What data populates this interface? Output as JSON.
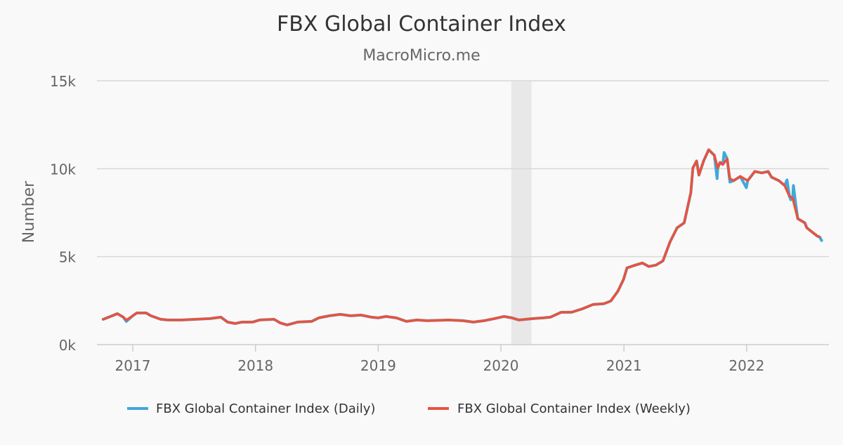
{
  "chart_data": {
    "type": "line",
    "title": "FBX Global Container Index",
    "subtitle": "MacroMicro.me",
    "xlabel": "",
    "ylabel": "Number",
    "ylim": [
      0,
      15000
    ],
    "xlim": [
      "2016-08-15",
      "2022-09-15"
    ],
    "y_ticks": [
      0,
      5000,
      10000,
      15000
    ],
    "y_tick_labels": [
      "0k",
      "5k",
      "10k",
      "15k"
    ],
    "x_ticks": [
      "2017-01-01",
      "2018-01-01",
      "2019-01-01",
      "2020-01-01",
      "2021-01-01",
      "2022-01-01"
    ],
    "x_tick_labels": [
      "2017",
      "2018",
      "2019",
      "2020",
      "2021",
      "2022"
    ],
    "grid": "horizontal",
    "legend": "bottom",
    "shaded_periods": [
      [
        "2020-02-01",
        "2020-04-01"
      ]
    ],
    "series": [
      {
        "name": "FBX Global Container Index (Daily)",
        "color": "#3fa9d9",
        "dates": [
          "2016-10-05",
          "2016-11-01",
          "2016-11-16",
          "2016-12-04",
          "2016-12-13",
          "2017-01-01",
          "2017-01-13",
          "2017-02-10",
          "2017-02-24",
          "2017-03-25",
          "2017-04-15",
          "2017-05-27",
          "2017-07-08",
          "2017-08-19",
          "2017-09-20",
          "2017-10-10",
          "2017-11-01",
          "2017-11-22",
          "2017-12-23",
          "2018-01-13",
          "2018-02-25",
          "2018-03-15",
          "2018-04-05",
          "2018-05-06",
          "2018-06-17",
          "2018-07-08",
          "2018-08-09",
          "2018-09-10",
          "2018-10-11",
          "2018-11-11",
          "2018-12-12",
          "2019-01-01",
          "2019-01-24",
          "2019-02-24",
          "2019-03-26",
          "2019-04-26",
          "2019-05-27",
          "2019-07-29",
          "2019-09-10",
          "2019-10-11",
          "2019-11-12",
          "2019-12-13",
          "2020-01-10",
          "2020-02-03",
          "2020-02-24",
          "2020-04-05",
          "2020-05-06",
          "2020-05-27",
          "2020-06-28",
          "2020-07-29",
          "2020-08-31",
          "2020-10-01",
          "2020-11-02",
          "2020-11-23",
          "2020-12-14",
          "2020-12-31",
          "2021-01-10",
          "2021-02-04",
          "2021-02-25",
          "2021-03-16",
          "2021-04-06",
          "2021-04-27",
          "2021-05-18",
          "2021-06-08",
          "2021-06-29",
          "2021-07-19",
          "2021-07-25",
          "2021-08-05",
          "2021-08-12",
          "2021-08-26",
          "2021-09-10",
          "2021-09-27",
          "2021-10-05",
          "2021-10-07",
          "2021-10-14",
          "2021-10-22",
          "2021-10-26",
          "2021-11-04",
          "2021-11-12",
          "2021-11-23",
          "2021-12-13",
          "2021-12-31",
          "2022-01-04",
          "2022-01-25",
          "2022-02-15",
          "2022-03-06",
          "2022-03-16",
          "2022-04-07",
          "2022-04-24",
          "2022-05-01",
          "2022-05-08",
          "2022-05-12",
          "2022-05-18",
          "2022-05-20",
          "2022-05-27",
          "2022-06-02",
          "2022-06-23",
          "2022-06-29",
          "2022-07-20",
          "2022-07-31",
          "2022-08-06",
          "2022-08-12"
        ],
        "values": [
          1440,
          1640,
          1760,
          1560,
          1320,
          1640,
          1800,
          1800,
          1640,
          1440,
          1400,
          1400,
          1440,
          1480,
          1560,
          1280,
          1200,
          1280,
          1280,
          1400,
          1440,
          1240,
          1120,
          1280,
          1320,
          1520,
          1640,
          1720,
          1640,
          1680,
          1560,
          1520,
          1600,
          1520,
          1320,
          1400,
          1360,
          1400,
          1360,
          1280,
          1360,
          1480,
          1600,
          1520,
          1400,
          1480,
          1520,
          1560,
          1840,
          1840,
          2040,
          2280,
          2320,
          2480,
          3040,
          3720,
          4360,
          4520,
          4640,
          4440,
          4520,
          4760,
          5840,
          6640,
          6920,
          8640,
          10040,
          10440,
          9640,
          10440,
          11080,
          10760,
          9440,
          10040,
          10360,
          10240,
          10920,
          10560,
          9240,
          9320,
          9560,
          8920,
          9320,
          9840,
          9760,
          9840,
          9520,
          9320,
          9040,
          9360,
          8440,
          8240,
          8320,
          9040,
          7960,
          7160,
          6920,
          6640,
          6320,
          6160,
          6120,
          5920
        ]
      },
      {
        "name": "FBX Global Container Index (Weekly)",
        "color": "#e8533f",
        "dates": [
          "2016-10-05",
          "2016-11-01",
          "2016-11-16",
          "2016-12-04",
          "2016-12-13",
          "2017-01-01",
          "2017-01-13",
          "2017-02-10",
          "2017-02-24",
          "2017-03-25",
          "2017-04-15",
          "2017-05-27",
          "2017-07-08",
          "2017-08-19",
          "2017-09-20",
          "2017-10-10",
          "2017-11-01",
          "2017-11-22",
          "2017-12-23",
          "2018-01-13",
          "2018-02-25",
          "2018-03-15",
          "2018-04-05",
          "2018-05-06",
          "2018-06-17",
          "2018-07-08",
          "2018-08-09",
          "2018-09-10",
          "2018-10-11",
          "2018-11-11",
          "2018-12-12",
          "2019-01-01",
          "2019-01-24",
          "2019-02-24",
          "2019-03-26",
          "2019-04-26",
          "2019-05-27",
          "2019-07-29",
          "2019-09-10",
          "2019-10-11",
          "2019-11-12",
          "2019-12-13",
          "2020-01-10",
          "2020-02-03",
          "2020-02-24",
          "2020-04-05",
          "2020-05-06",
          "2020-05-27",
          "2020-06-28",
          "2020-07-29",
          "2020-08-31",
          "2020-10-01",
          "2020-11-02",
          "2020-11-23",
          "2020-12-14",
          "2020-12-31",
          "2021-01-10",
          "2021-02-04",
          "2021-02-25",
          "2021-03-16",
          "2021-04-06",
          "2021-04-27",
          "2021-05-18",
          "2021-06-08",
          "2021-06-29",
          "2021-07-19",
          "2021-07-25",
          "2021-08-05",
          "2021-08-12",
          "2021-08-26",
          "2021-09-10",
          "2021-09-27",
          "2021-10-07",
          "2021-10-14",
          "2021-10-22",
          "2021-11-04",
          "2021-11-12",
          "2021-11-23",
          "2021-12-13",
          "2022-01-04",
          "2022-01-25",
          "2022-02-15",
          "2022-03-06",
          "2022-03-16",
          "2022-04-07",
          "2022-04-24",
          "2022-05-08",
          "2022-05-18",
          "2022-06-02",
          "2022-06-23",
          "2022-06-29",
          "2022-07-20",
          "2022-07-31",
          "2022-08-06"
        ],
        "values": [
          1440,
          1640,
          1760,
          1560,
          1400,
          1640,
          1800,
          1800,
          1640,
          1440,
          1400,
          1400,
          1440,
          1480,
          1560,
          1280,
          1200,
          1280,
          1280,
          1400,
          1440,
          1240,
          1120,
          1280,
          1320,
          1520,
          1640,
          1720,
          1640,
          1680,
          1560,
          1520,
          1600,
          1520,
          1320,
          1400,
          1360,
          1400,
          1360,
          1280,
          1360,
          1480,
          1600,
          1520,
          1400,
          1480,
          1520,
          1560,
          1840,
          1840,
          2040,
          2280,
          2320,
          2480,
          3040,
          3720,
          4360,
          4520,
          4640,
          4440,
          4520,
          4760,
          5840,
          6640,
          6920,
          8640,
          10040,
          10440,
          9640,
          10440,
          11080,
          10760,
          10040,
          10360,
          10240,
          10560,
          9440,
          9320,
          9560,
          9320,
          9840,
          9760,
          9840,
          9520,
          9320,
          9040,
          8440,
          8320,
          7160,
          6920,
          6640,
          6320,
          6160,
          6120
        ]
      }
    ]
  }
}
